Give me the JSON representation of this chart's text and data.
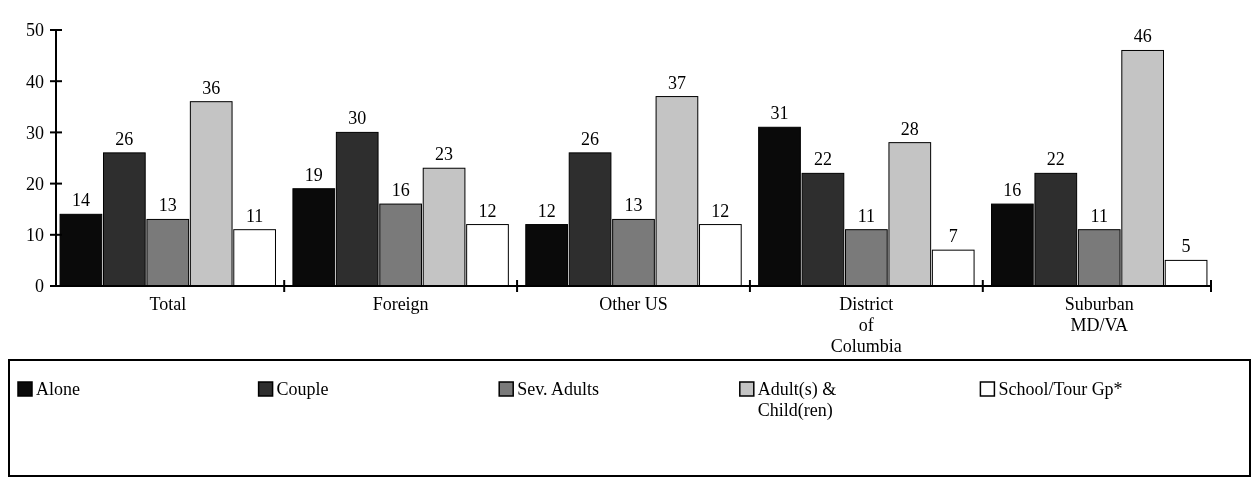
{
  "chart_data": {
    "type": "bar",
    "categories": [
      "Total",
      "Foreign",
      "Other US",
      "District\nof\nColumbia",
      "Suburban\nMD/VA"
    ],
    "series": [
      {
        "name": "Alone",
        "color": "#0a0a0a",
        "values": [
          14,
          19,
          12,
          31,
          16
        ]
      },
      {
        "name": "Couple",
        "color": "#2e2e2e",
        "values": [
          26,
          30,
          26,
          22,
          22
        ]
      },
      {
        "name": "Sev. Adults",
        "color": "#7a7a7a",
        "values": [
          13,
          16,
          13,
          11,
          11
        ]
      },
      {
        "name": "Adult(s) & Child(ren)",
        "color": "#c4c4c4",
        "values": [
          36,
          23,
          37,
          28,
          46
        ]
      },
      {
        "name": "School/Tour Gp*",
        "color": "#ffffff",
        "values": [
          11,
          12,
          12,
          7,
          5
        ]
      }
    ],
    "ylim": [
      0,
      50
    ],
    "yticks": [
      0,
      10,
      20,
      30,
      40,
      50
    ],
    "data_labels": true,
    "legend": "bottom",
    "grid": false
  }
}
